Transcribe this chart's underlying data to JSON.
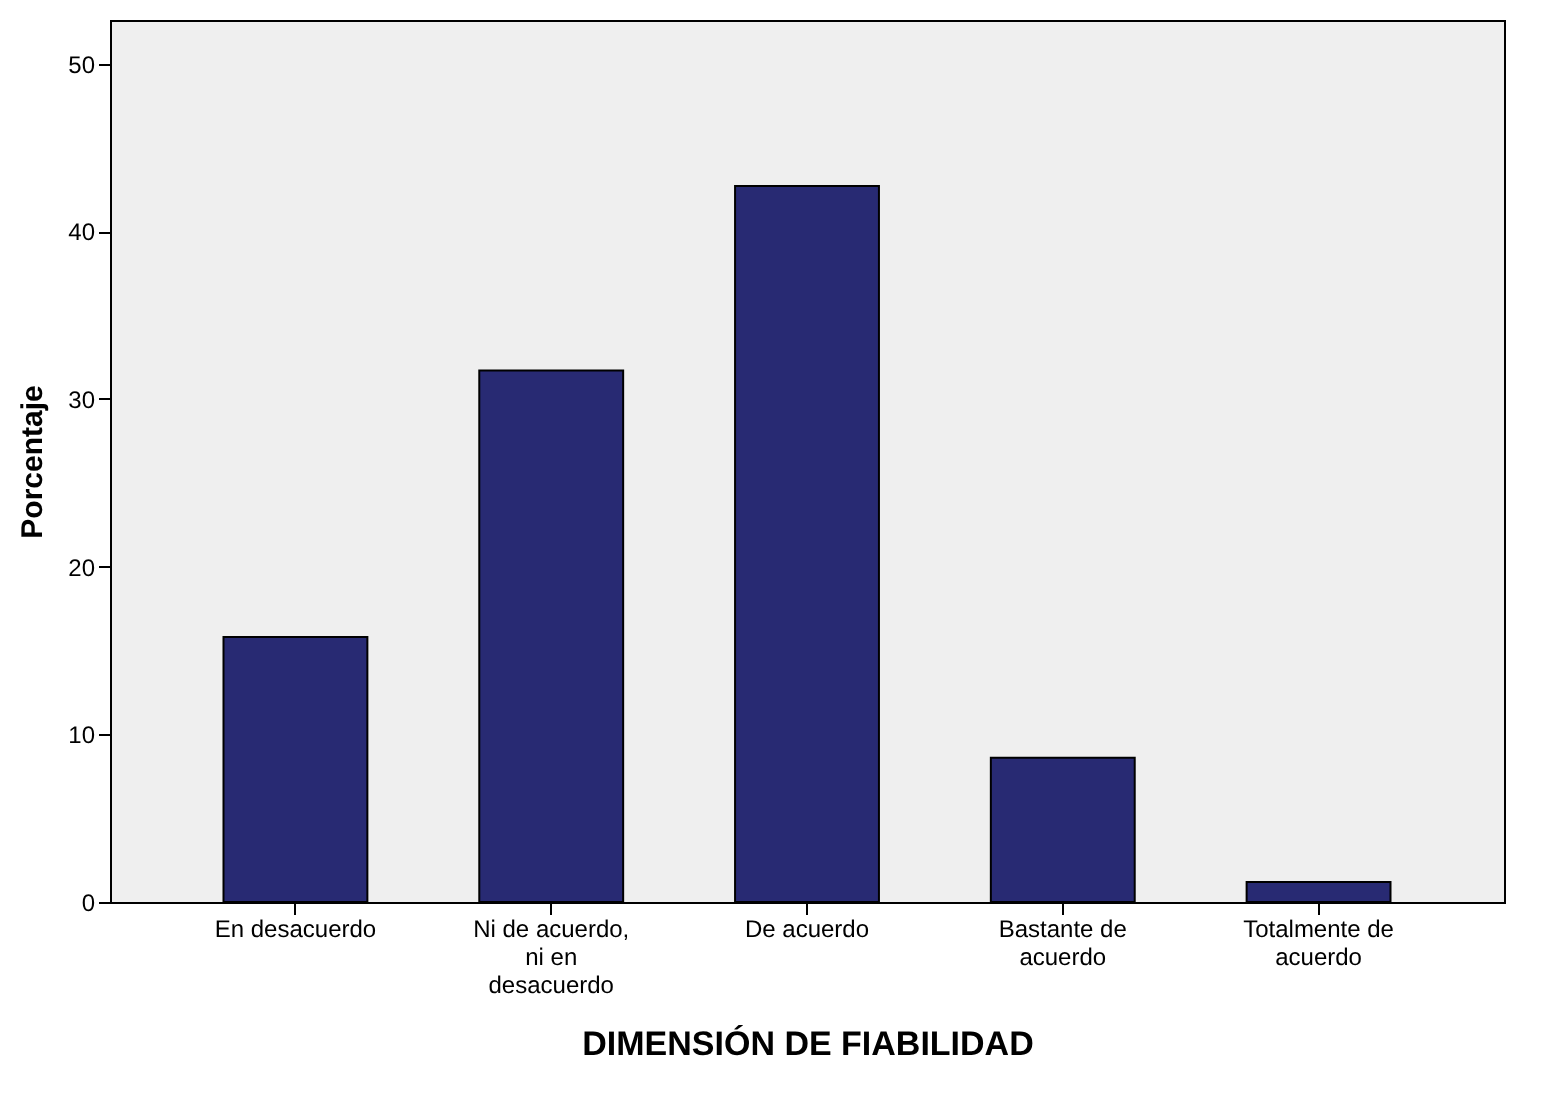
{
  "chart_data": {
    "type": "bar",
    "xlabel": "DIMENSIÓN DE FIABILIDAD",
    "ylabel": "Porcentaje",
    "categories": [
      "En desacuerdo",
      "Ni de acuerdo, ni en desacuerdo",
      "De acuerdo",
      "Bastante de acuerdo",
      "Totalmente de acuerdo"
    ],
    "values": [
      15.8,
      31.7,
      42.7,
      8.6,
      1.2
    ],
    "color": "#282a73",
    "ylim": [
      0,
      52.6
    ],
    "yticks": [
      0,
      10,
      20,
      30,
      40,
      50
    ],
    "grid": false
  }
}
